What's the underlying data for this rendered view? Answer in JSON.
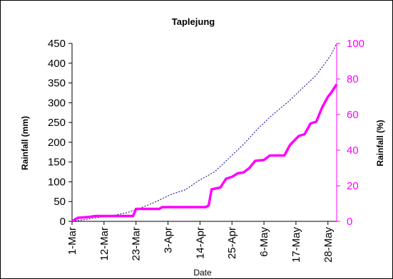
{
  "chart_data": {
    "type": "line",
    "title": "Taplejung",
    "xlabel": "Date",
    "ylabel": "Rainfall (mm)",
    "y2label": "Rainfall (%)",
    "ylim": [
      0,
      450
    ],
    "y2lim": [
      0,
      100
    ],
    "yticks": [
      0,
      50,
      100,
      150,
      200,
      250,
      300,
      350,
      400,
      450
    ],
    "y2ticks": [
      0,
      20,
      40,
      60,
      80,
      100
    ],
    "xticks": [
      "1-Mar",
      "12-Mar",
      "23-Mar",
      "3-Apr",
      "14-Apr",
      "25-Apr",
      "6-May",
      "17-May",
      "28-May"
    ],
    "x_range": [
      "2000-03-01",
      "2000-05-31"
    ],
    "grid": false,
    "colors": {
      "percent_series": "#ff00ff",
      "cumulative_series": "#000080",
      "axis": "#000000"
    },
    "series": [
      {
        "axis": "left",
        "style": "dashed",
        "points": [
          [
            "2000-03-01",
            0
          ],
          [
            "2000-03-05",
            4
          ],
          [
            "2000-03-10",
            10
          ],
          [
            "2000-03-15",
            15
          ],
          [
            "2000-03-20",
            22
          ],
          [
            "2000-03-25",
            35
          ],
          [
            "2000-03-30",
            50
          ],
          [
            "2000-04-04",
            68
          ],
          [
            "2000-04-09",
            80
          ],
          [
            "2000-04-14",
            105
          ],
          [
            "2000-04-19",
            125
          ],
          [
            "2000-04-24",
            160
          ],
          [
            "2000-04-29",
            195
          ],
          [
            "2000-05-04",
            235
          ],
          [
            "2000-05-09",
            270
          ],
          [
            "2000-05-14",
            300
          ],
          [
            "2000-05-19",
            335
          ],
          [
            "2000-05-24",
            370
          ],
          [
            "2000-05-29",
            420
          ],
          [
            "2000-05-31",
            450
          ]
        ]
      },
      {
        "axis": "right",
        "style": "solid",
        "points": [
          [
            "2000-03-01",
            0
          ],
          [
            "2000-03-03",
            2
          ],
          [
            "2000-03-07",
            2.5
          ],
          [
            "2000-03-09",
            3
          ],
          [
            "2000-03-22",
            3
          ],
          [
            "2000-03-23",
            7
          ],
          [
            "2000-03-31",
            7
          ],
          [
            "2000-04-01",
            8
          ],
          [
            "2000-04-16",
            8
          ],
          [
            "2000-04-17",
            9
          ],
          [
            "2000-04-18",
            18
          ],
          [
            "2000-04-21",
            19
          ],
          [
            "2000-04-23",
            24
          ],
          [
            "2000-04-25",
            25
          ],
          [
            "2000-04-27",
            27
          ],
          [
            "2000-04-29",
            27.5
          ],
          [
            "2000-05-01",
            30
          ],
          [
            "2000-05-03",
            34
          ],
          [
            "2000-05-06",
            34.5
          ],
          [
            "2000-05-08",
            37
          ],
          [
            "2000-05-13",
            37
          ],
          [
            "2000-05-15",
            43
          ],
          [
            "2000-05-18",
            48
          ],
          [
            "2000-05-20",
            49
          ],
          [
            "2000-05-22",
            55
          ],
          [
            "2000-05-24",
            56
          ],
          [
            "2000-05-26",
            64
          ],
          [
            "2000-05-28",
            70
          ],
          [
            "2000-05-29",
            72
          ],
          [
            "2000-05-31",
            77
          ]
        ]
      }
    ]
  }
}
